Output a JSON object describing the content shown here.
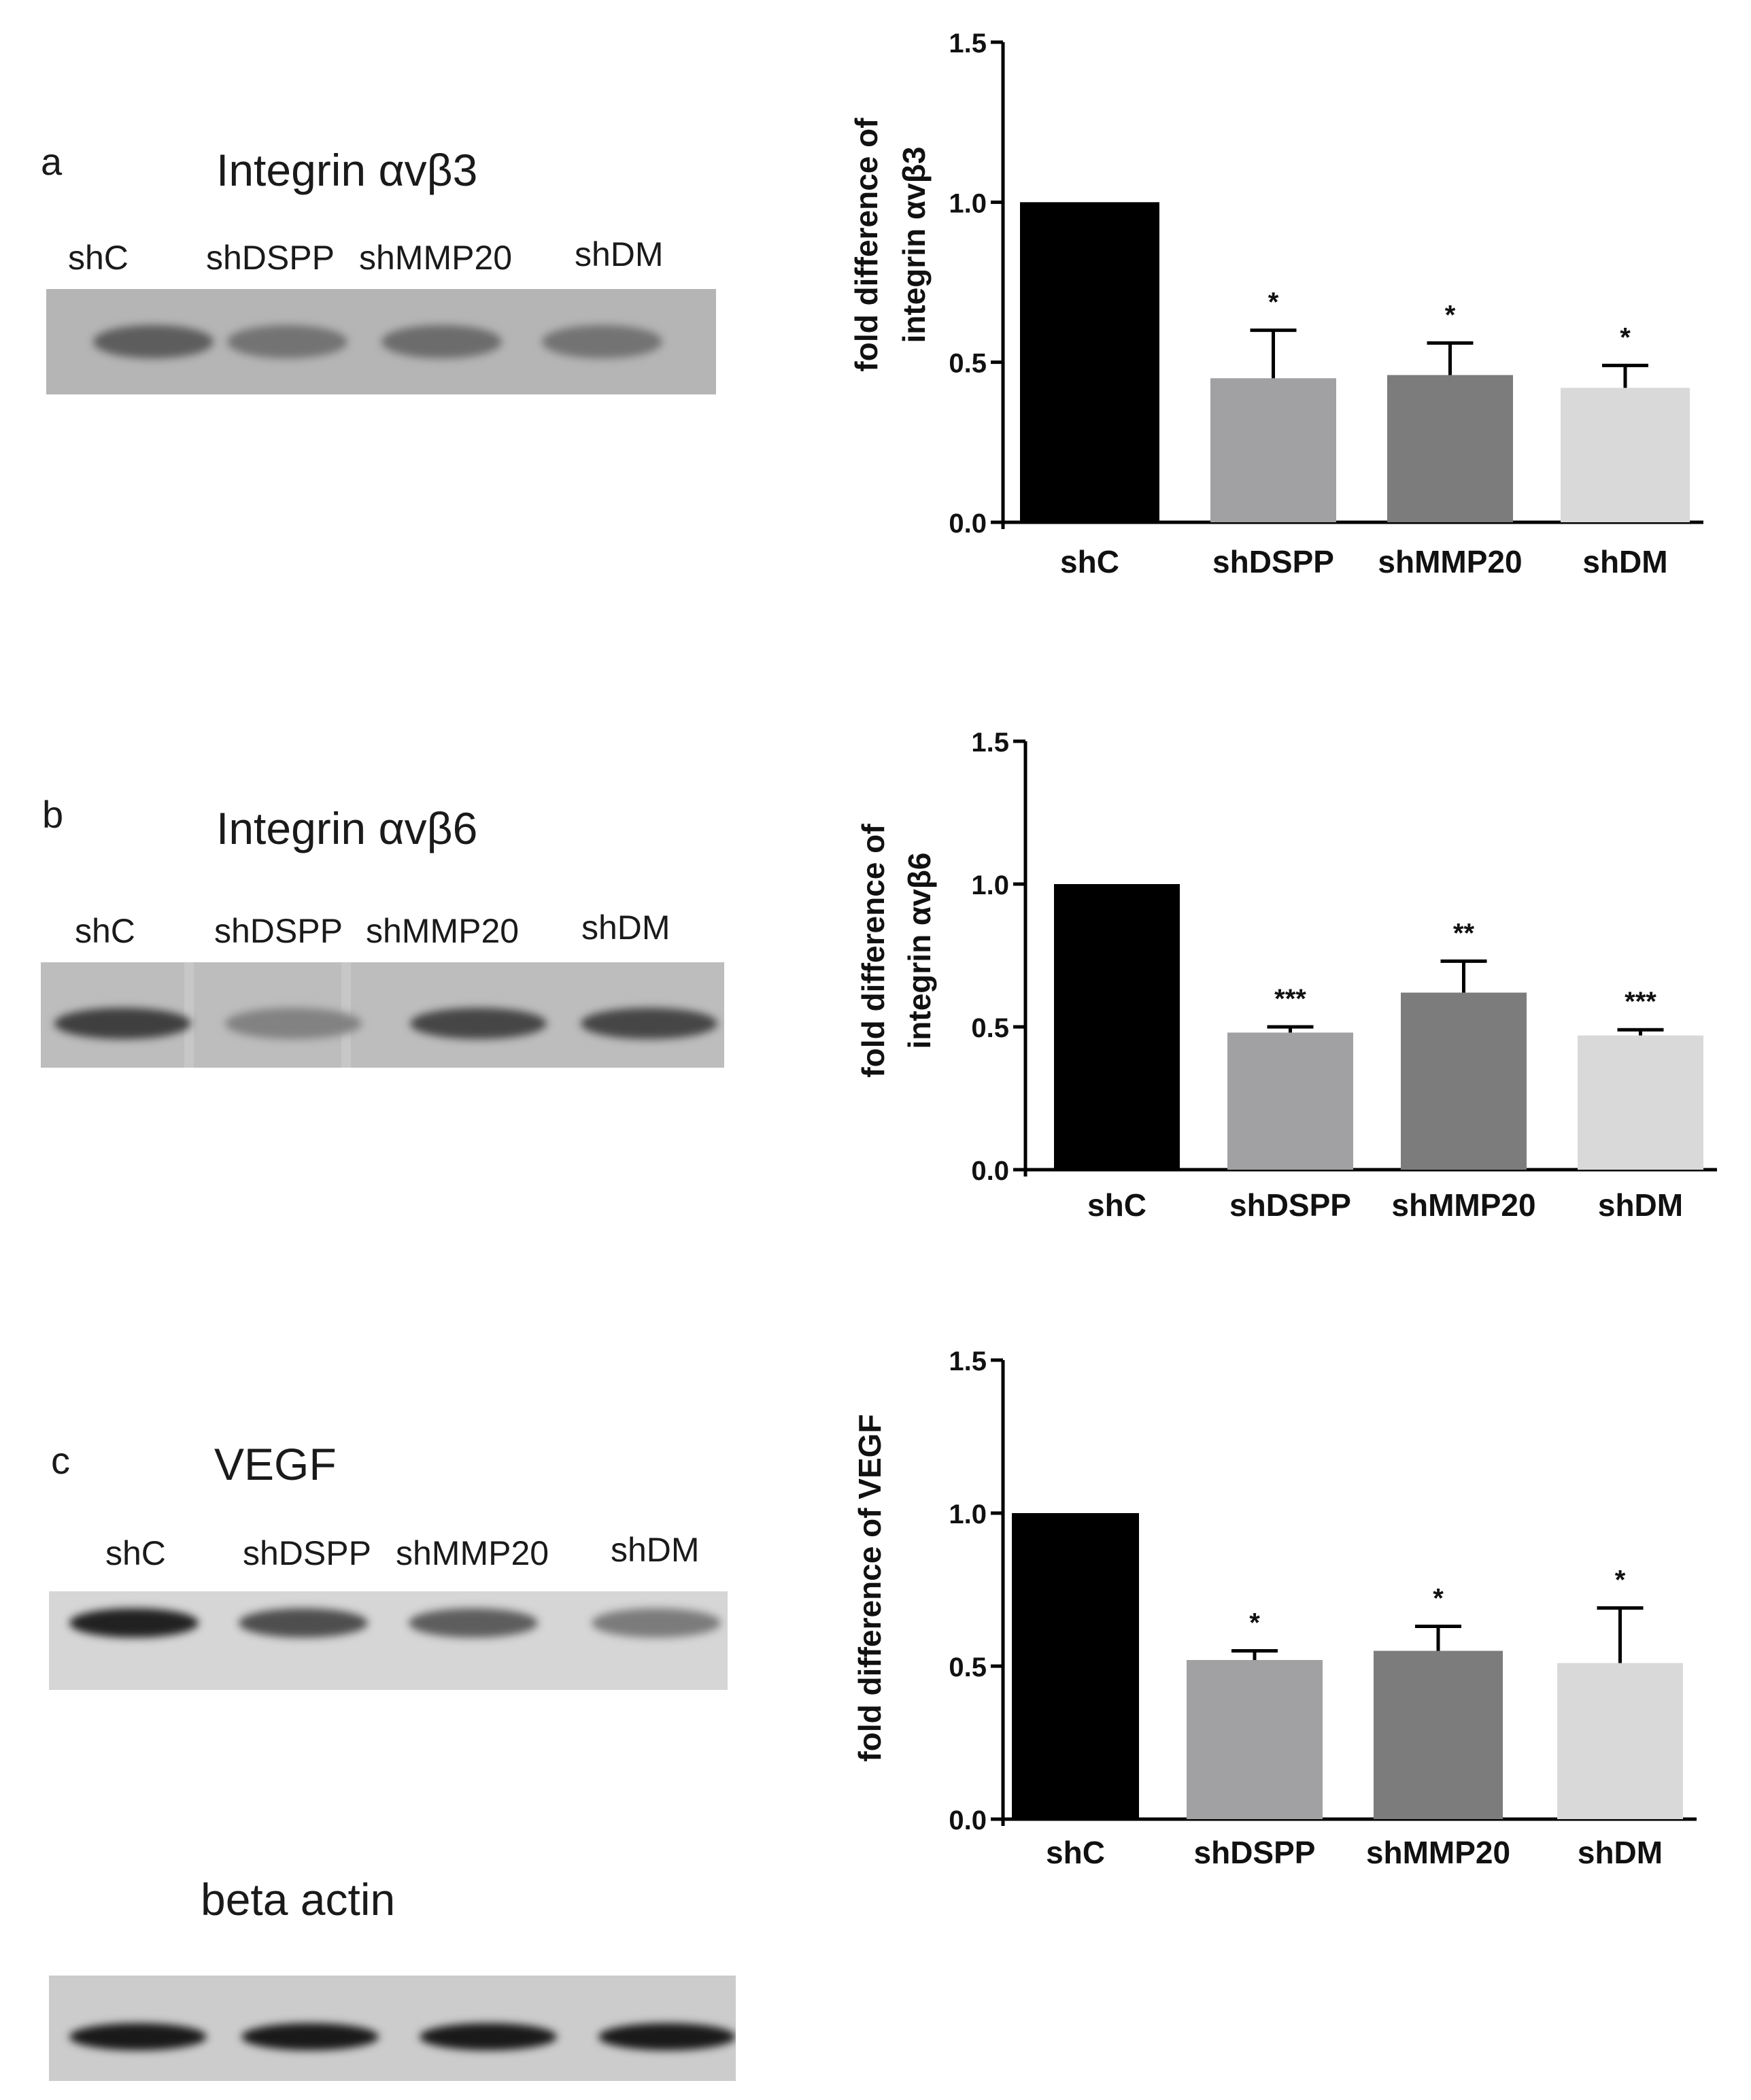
{
  "blots": [
    {
      "letter": "a",
      "title": "Integrin αvβ3",
      "lanes": [
        "shC",
        "shDSPP",
        "shMMP20",
        "shDM"
      ],
      "background": "#b5b5b5",
      "bands": [
        {
          "intensity": 0.55
        },
        {
          "intensity": 0.4
        },
        {
          "intensity": 0.45
        },
        {
          "intensity": 0.4
        }
      ]
    },
    {
      "letter": "b",
      "title": "Integrin αvβ6",
      "lanes": [
        "shC",
        "shDSPP",
        "shMMP20",
        "shDM"
      ],
      "background": "#bdbdbd",
      "bands": [
        {
          "intensity": 0.75
        },
        {
          "intensity": 0.3
        },
        {
          "intensity": 0.7
        },
        {
          "intensity": 0.7
        }
      ]
    },
    {
      "letter": "c",
      "title": "VEGF",
      "lanes": [
        "shC",
        "shDSPP",
        "shMMP20",
        "shDM"
      ],
      "background": "#d6d6d6",
      "bands": [
        {
          "intensity": 0.95
        },
        {
          "intensity": 0.65
        },
        {
          "intensity": 0.55
        },
        {
          "intensity": 0.35
        }
      ]
    },
    {
      "letter": "",
      "title": "beta actin",
      "lanes": [],
      "background": "#cccccc",
      "bands": [
        {
          "intensity": 1.0
        },
        {
          "intensity": 1.0
        },
        {
          "intensity": 1.0
        },
        {
          "intensity": 1.0
        }
      ]
    }
  ],
  "chart_data": [
    {
      "type": "bar",
      "ylabel_lines": [
        "fold difference of",
        "integrin αvβ3"
      ],
      "categories": [
        "shC",
        "shDSPP",
        "shMMP20",
        "shDM"
      ],
      "values": [
        1.0,
        0.45,
        0.46,
        0.42
      ],
      "errors": [
        0.0,
        0.15,
        0.1,
        0.07
      ],
      "significance": [
        "",
        "*",
        "*",
        "*"
      ],
      "bar_colors": [
        "#000000",
        "#a1a1a3",
        "#7c7c7c",
        "#d9d9d9"
      ],
      "ylim": [
        0,
        1.5
      ],
      "yticks": [
        "0.0",
        "0.5",
        "1.0",
        "1.5"
      ]
    },
    {
      "type": "bar",
      "ylabel_lines": [
        "fold difference of",
        "integrin αvβ6"
      ],
      "categories": [
        "shC",
        "shDSPP",
        "shMMP20",
        "shDM"
      ],
      "values": [
        1.0,
        0.48,
        0.62,
        0.47
      ],
      "errors": [
        0.0,
        0.02,
        0.11,
        0.02
      ],
      "significance": [
        "",
        "***",
        "**",
        "***"
      ],
      "bar_colors": [
        "#000000",
        "#a1a1a3",
        "#7c7c7c",
        "#d9d9d9"
      ],
      "ylim": [
        0,
        1.5
      ],
      "yticks": [
        "0.0",
        "0.5",
        "1.0",
        "1.5"
      ]
    },
    {
      "type": "bar",
      "ylabel_lines": [
        "fold difference of VEGF"
      ],
      "categories": [
        "shC",
        "shDSPP",
        "shMMP20",
        "shDM"
      ],
      "values": [
        1.0,
        0.52,
        0.55,
        0.51
      ],
      "errors": [
        0.0,
        0.03,
        0.08,
        0.18
      ],
      "significance": [
        "",
        "*",
        "*",
        "*"
      ],
      "bar_colors": [
        "#000000",
        "#a1a1a3",
        "#7c7c7c",
        "#d9d9d9"
      ],
      "ylim": [
        0,
        1.5
      ],
      "yticks": [
        "0.0",
        "0.5",
        "1.0",
        "1.5"
      ]
    }
  ]
}
